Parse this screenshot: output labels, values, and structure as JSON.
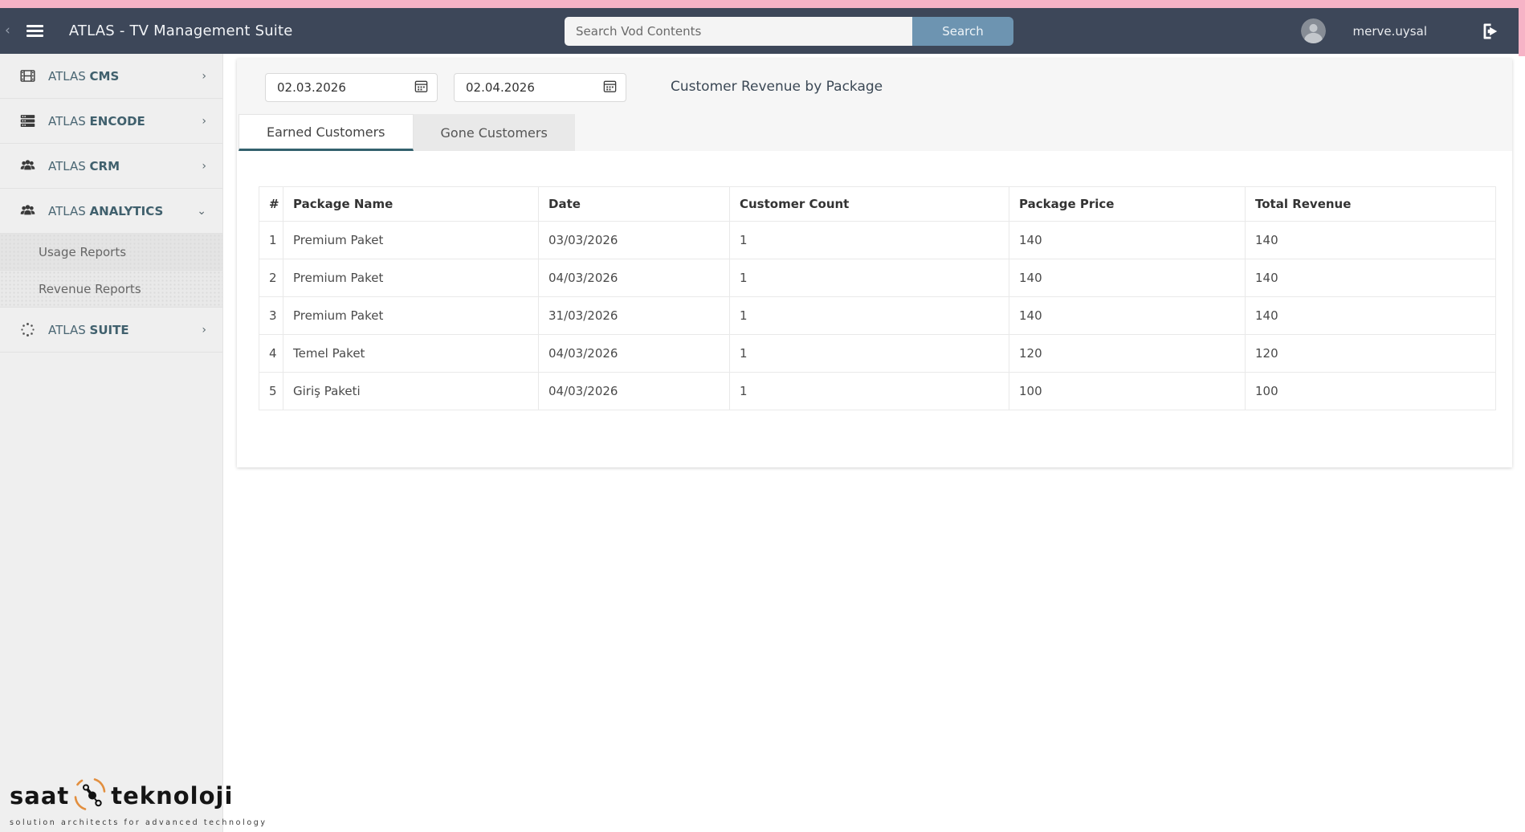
{
  "header": {
    "title": "ATLAS - TV Management Suite",
    "search": {
      "placeholder": "Search Vod Contents",
      "button_label": "Search"
    },
    "user": {
      "name": "merve.uysal"
    }
  },
  "sidebar": {
    "items": [
      {
        "prefix": "ATLAS",
        "bold": "CMS",
        "icon": "film-icon",
        "chevron": "right"
      },
      {
        "prefix": "ATLAS",
        "bold": "ENCODE",
        "icon": "server-icon",
        "chevron": "right"
      },
      {
        "prefix": "ATLAS",
        "bold": "CRM",
        "icon": "users-icon",
        "chevron": "right"
      },
      {
        "prefix": "ATLAS",
        "bold": "ANALYTICS",
        "icon": "users-icon",
        "chevron": "down"
      },
      {
        "label": "Usage Reports",
        "submenu": true,
        "active": true
      },
      {
        "label": "Revenue Reports",
        "submenu": true,
        "active": false
      },
      {
        "prefix": "ATLAS",
        "bold": "SUITE",
        "icon": "spinner-icon",
        "chevron": "right"
      }
    ],
    "logo": {
      "brand_left": "saat",
      "brand_right": "teknoloji",
      "tagline": "solution architects for advanced technology"
    }
  },
  "main": {
    "date_from": "02.03.2026",
    "date_to": "02.04.2026",
    "page_title": "Customer Revenue by Package",
    "tabs": [
      {
        "label": "Earned Customers",
        "active": true
      },
      {
        "label": "Gone Customers",
        "active": false
      }
    ],
    "table": {
      "columns": [
        "#",
        "Package Name",
        "Date",
        "Customer Count",
        "Package Price",
        "Total Revenue"
      ],
      "rows": [
        [
          "1",
          "Premium Paket",
          "03/03/2026",
          "1",
          "140",
          "140"
        ],
        [
          "2",
          "Premium Paket",
          "04/03/2026",
          "1",
          "140",
          "140"
        ],
        [
          "3",
          "Premium Paket",
          "31/03/2026",
          "1",
          "140",
          "140"
        ],
        [
          "4",
          "Temel Paket",
          "04/03/2026",
          "1",
          "120",
          "120"
        ],
        [
          "5",
          "Giriş Paketi",
          "04/03/2026",
          "1",
          "100",
          "100"
        ]
      ]
    }
  },
  "colors": {
    "topbar_pink": "#f6b3c6",
    "header_bg": "#3d4759",
    "search_button_bg": "#6d94b1",
    "sidebar_bg": "#efefef",
    "submenu_bg": "#e9e9e9",
    "tab_accent": "#33616d",
    "logo_orange": "#e28f3f"
  }
}
